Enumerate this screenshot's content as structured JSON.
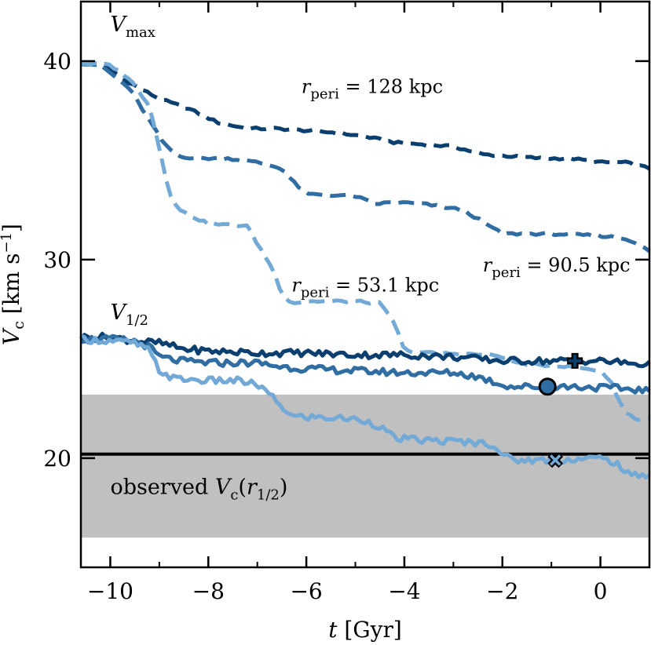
{
  "chart_data": {
    "type": "line",
    "xlabel_var": "t",
    "xlabel_unit": "[Gyr]",
    "ylabel_var": "V",
    "ylabel_sub": "c",
    "ylabel_unit_a": "[km s",
    "ylabel_unit_exp": "−1",
    "ylabel_unit_b": "]",
    "xlim": [
      -10.6,
      1.0
    ],
    "ylim": [
      14.5,
      43.0
    ],
    "xticks": [
      -10,
      -8,
      -6,
      -4,
      -2,
      0
    ],
    "xtick_labels": [
      "−10",
      "−8",
      "−6",
      "−4",
      "−2",
      "0"
    ],
    "yticks": [
      20,
      30,
      40
    ],
    "ytick_labels": [
      "20",
      "30",
      "40"
    ],
    "colors": {
      "dark": "#0b3f6f",
      "mid": "#2f6da3",
      "light": "#72a9d6",
      "band": "#c0c0c0",
      "hline": "#000000"
    },
    "observed": {
      "value": 20.2,
      "band": [
        16.0,
        23.2
      ]
    },
    "series": [
      {
        "group": "Vmax",
        "color_key": "dark",
        "style": "dashed",
        "x": [
          -10.6,
          -10.2,
          -9.6,
          -9.0,
          -8.4,
          -7.8,
          -7.2,
          -6.6,
          -6.0,
          -5.4,
          -4.8,
          -4.2,
          -3.6,
          -3.0,
          -2.4,
          -1.8,
          -1.2,
          -0.6,
          0.0,
          0.5,
          1.0
        ],
        "y": [
          39.9,
          39.9,
          38.9,
          38.1,
          37.6,
          36.9,
          36.6,
          36.6,
          36.5,
          36.4,
          36.2,
          35.9,
          35.8,
          35.7,
          35.3,
          35.2,
          35.1,
          35.1,
          34.9,
          34.9,
          34.6
        ]
      },
      {
        "group": "Vmax",
        "color_key": "mid",
        "style": "dashed",
        "x": [
          -10.6,
          -10.2,
          -9.6,
          -9.2,
          -8.9,
          -8.6,
          -8.2,
          -7.6,
          -7.0,
          -6.5,
          -6.3,
          -6.0,
          -5.0,
          -4.6,
          -4.2,
          -3.6,
          -2.8,
          -2.2,
          -2.0,
          -1.0,
          0.0,
          0.4,
          0.7,
          1.0
        ],
        "y": [
          39.9,
          39.8,
          38.6,
          37.0,
          35.8,
          35.2,
          35.1,
          35.1,
          34.9,
          34.6,
          34.0,
          33.3,
          33.2,
          32.8,
          32.9,
          32.8,
          32.5,
          31.6,
          31.3,
          31.3,
          31.2,
          31.1,
          30.9,
          30.4
        ]
      },
      {
        "group": "Vmax",
        "color_key": "light",
        "style": "dashed",
        "x": [
          -10.6,
          -10.0,
          -9.6,
          -9.4,
          -9.2,
          -9.0,
          -8.8,
          -8.6,
          -8.0,
          -7.2,
          -7.0,
          -6.7,
          -6.5,
          -6.3,
          -6.0,
          -5.0,
          -4.5,
          -4.2,
          -4.0,
          -3.5,
          -2.2,
          -2.0,
          -1.7,
          -1.3,
          -0.6,
          0.0,
          0.2,
          0.5,
          0.8,
          1.0
        ],
        "y": [
          39.9,
          39.8,
          39.1,
          38.4,
          37.8,
          35.6,
          33.4,
          32.5,
          31.8,
          31.7,
          30.8,
          29.6,
          28.3,
          27.8,
          27.9,
          27.9,
          27.8,
          26.8,
          25.4,
          25.3,
          25.2,
          25.1,
          24.8,
          24.7,
          24.6,
          24.4,
          23.9,
          22.3,
          21.9,
          22.0
        ]
      },
      {
        "group": "Vhalf",
        "color_key": "dark",
        "style": "solid",
        "x": [
          -10.6,
          -10.0,
          -9.5,
          -9.0,
          -8.5,
          -8.0,
          -7.0,
          -6.0,
          -5.0,
          -4.0,
          -3.0,
          -2.0,
          -1.0,
          0.0,
          0.5,
          1.0
        ],
        "y": [
          26.1,
          26.1,
          25.9,
          25.8,
          25.5,
          25.4,
          25.3,
          25.3,
          25.2,
          25.2,
          25.1,
          24.9,
          24.9,
          24.9,
          24.8,
          24.7
        ]
      },
      {
        "group": "Vhalf",
        "color_key": "mid",
        "style": "solid",
        "x": [
          -10.6,
          -10.0,
          -9.5,
          -9.2,
          -9.0,
          -8.6,
          -8.0,
          -7.0,
          -6.5,
          -6.0,
          -4.0,
          -3.0,
          -2.5,
          -2.0,
          -1.8,
          -1.2,
          -0.5,
          0.5,
          1.0
        ],
        "y": [
          26.0,
          26.0,
          25.9,
          25.6,
          25.1,
          24.9,
          24.8,
          24.8,
          24.6,
          24.5,
          24.3,
          24.3,
          24.1,
          23.7,
          23.6,
          23.6,
          23.6,
          23.5,
          23.4
        ]
      },
      {
        "group": "Vhalf",
        "color_key": "light",
        "style": "solid",
        "x": [
          -10.6,
          -10.0,
          -9.5,
          -9.2,
          -9.0,
          -8.7,
          -8.0,
          -7.4,
          -7.0,
          -6.8,
          -6.5,
          -6.3,
          -5.2,
          -4.8,
          -4.5,
          -4.2,
          -3.6,
          -2.6,
          -2.2,
          -2.0,
          -1.8,
          -1.4,
          -1.0,
          0.0,
          0.3,
          0.6,
          1.0
        ],
        "y": [
          26.0,
          25.9,
          25.8,
          25.4,
          24.4,
          24.0,
          23.9,
          23.9,
          23.7,
          23.3,
          22.6,
          22.1,
          22.0,
          21.9,
          21.6,
          21.0,
          20.9,
          20.8,
          20.7,
          20.2,
          19.9,
          19.9,
          19.9,
          20.0,
          19.8,
          19.1,
          19.2
        ]
      }
    ],
    "markers": [
      {
        "shape": "plus",
        "x": -0.52,
        "y": 24.9,
        "color_key": "dark"
      },
      {
        "shape": "circle",
        "x": -1.08,
        "y": 23.6,
        "color_key": "mid"
      },
      {
        "shape": "x",
        "x": -0.92,
        "y": 19.9,
        "color_key": "light"
      }
    ],
    "annotations": {
      "vmax": {
        "base": "V",
        "sub": "max",
        "x": -10.0,
        "y": 41.5
      },
      "vhalf": {
        "base": "V",
        "sub": "1/2",
        "x": -10.0,
        "y": 27.0
      },
      "r128": {
        "base": "r",
        "sub": "peri",
        "rest": " = 128 kpc",
        "x": -6.1,
        "y": 38.4
      },
      "r905": {
        "base": "r",
        "sub": "peri",
        "rest": " = 90.5 kpc",
        "x": -2.4,
        "y": 29.4
      },
      "r531": {
        "base": "r",
        "sub": "peri",
        "rest": " = 53.1 kpc",
        "x": -6.3,
        "y": 28.4
      },
      "observed": {
        "prefix": "observed ",
        "base": "V",
        "sub": "c",
        "arg_open": "(r",
        "arg_sub": "1/2",
        "arg_close": ")",
        "x": -10.0,
        "y": 18.2
      }
    }
  }
}
